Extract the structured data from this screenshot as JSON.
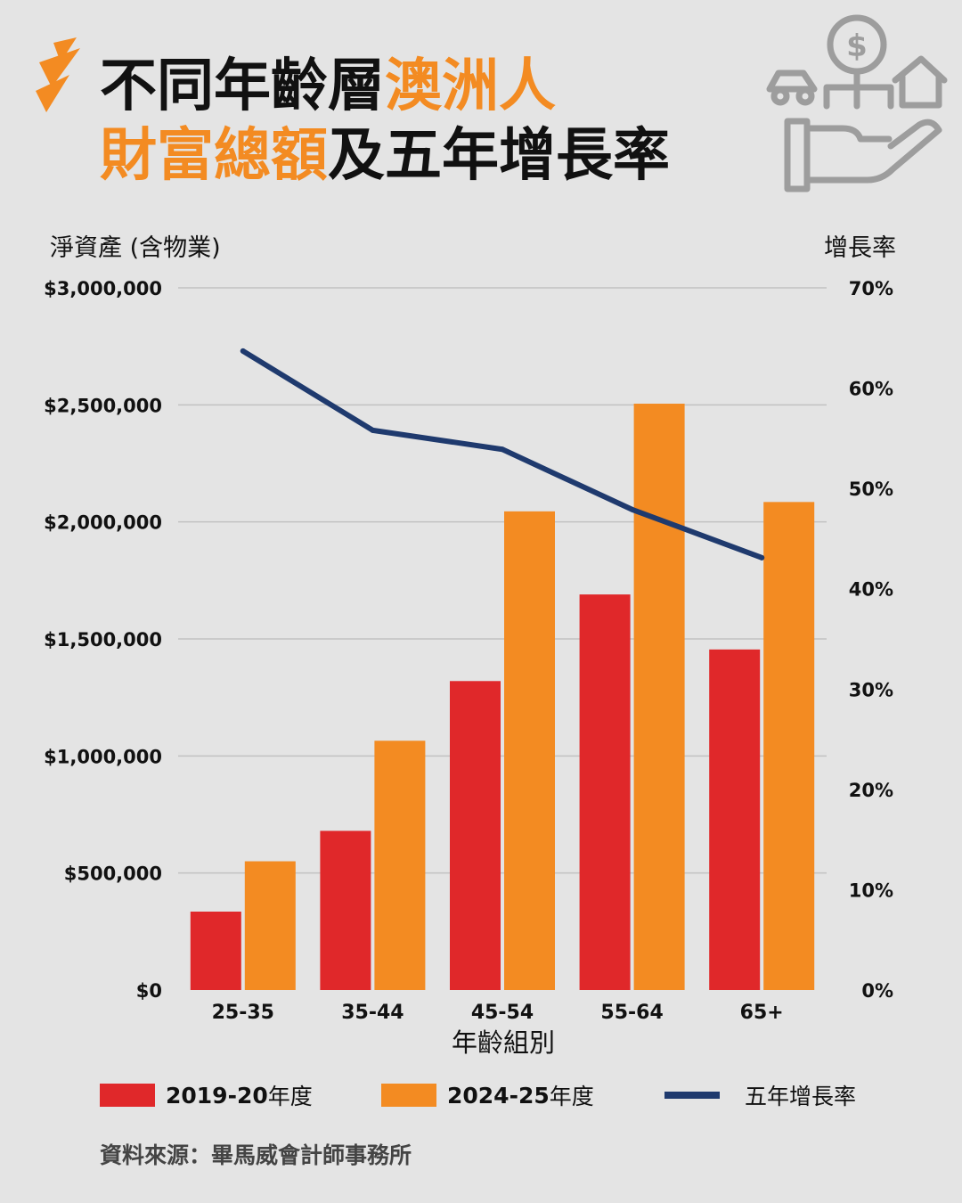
{
  "header": {
    "title_line1_dark": "不同年齡層",
    "title_line1_accent": "澳洲人",
    "title_line2_accent": "財富總額",
    "title_line2_dark": "及五年增長率"
  },
  "colors": {
    "accent": "#f38b22",
    "series_2019": "#e0282a",
    "series_2024": "#f38b22",
    "growth_line": "#1f3a6e",
    "grid": "#c2c2c2",
    "background": "#e4e4e4"
  },
  "icons": [
    "brand-logo-icon",
    "money-hand-icon"
  ],
  "chart_data": {
    "type": "bar",
    "categories": [
      "25-35",
      "35-44",
      "45-54",
      "55-64",
      "65+"
    ],
    "xlabel": "年齡組別",
    "ylabel": "淨資產 (含物業)",
    "ylabel_right": "增長率",
    "ylim": [
      0,
      3000000
    ],
    "ylim_right": [
      0,
      70
    ],
    "yticks": [
      "$0",
      "$500,000",
      "$1,000,000",
      "$1,500,000",
      "$2,000,000",
      "$2,500,000",
      "$3,000,000"
    ],
    "yticks_right": [
      "0%",
      "10%",
      "20%",
      "30%",
      "40%",
      "50%",
      "60%",
      "70%"
    ],
    "grid": true,
    "series": [
      {
        "name": "2019-20年度",
        "type": "bar",
        "values": [
          335000,
          680000,
          1320000,
          1690000,
          1455000
        ]
      },
      {
        "name": "2024-25年度",
        "type": "bar",
        "values": [
          550000,
          1065000,
          2045000,
          2505000,
          2085000
        ]
      },
      {
        "name": "五年增長率",
        "type": "line",
        "axis": "right",
        "values": [
          63.7,
          55.8,
          53.9,
          47.9,
          43.1
        ]
      }
    ],
    "legend_position": "bottom"
  },
  "legend": [
    {
      "label_bold": "2019-20",
      "label_rest": "年度"
    },
    {
      "label_bold": "2024-25",
      "label_rest": "年度"
    },
    {
      "label_bold": "",
      "label_rest": "五年增長率"
    }
  ],
  "source": "資料來源：畢馬威會計師事務所"
}
